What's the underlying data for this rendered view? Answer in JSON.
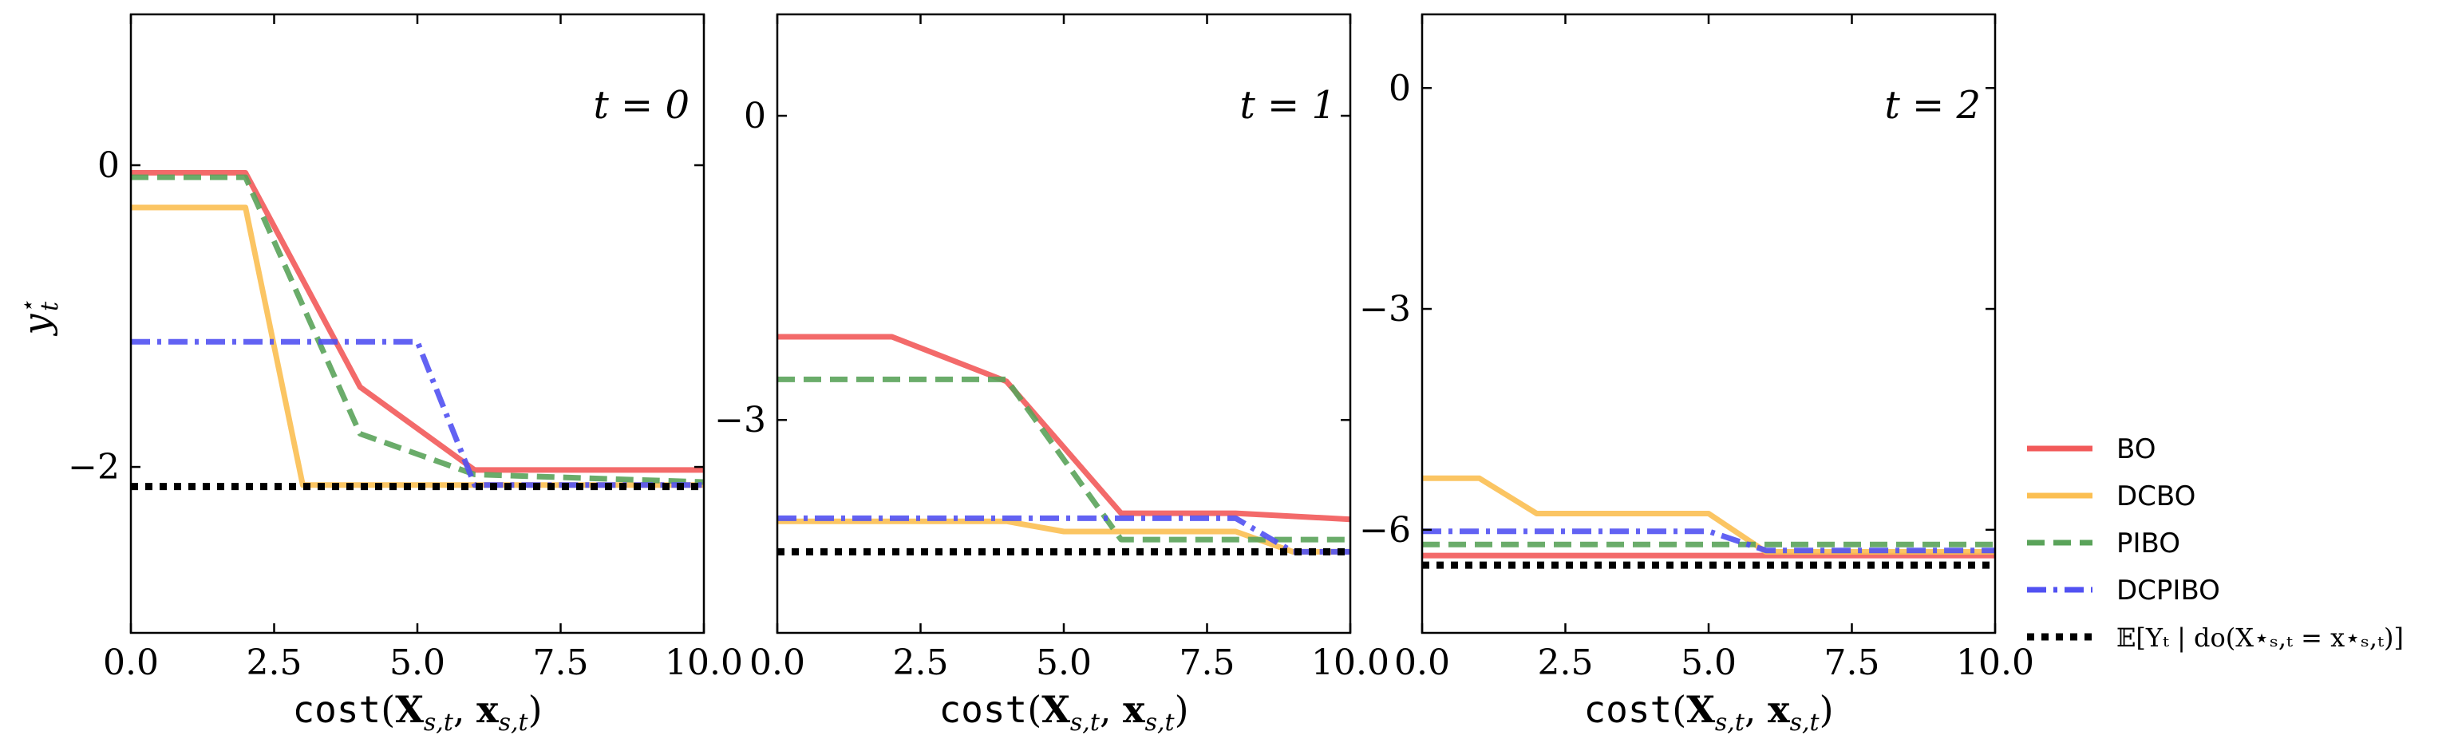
{
  "chart_data": [
    {
      "type": "line",
      "panel_label": "t = 0",
      "xlabel": "cost(X_{s,t}, x_{s,t})",
      "ylabel": "y*_t",
      "xlim": [
        0,
        10
      ],
      "ylim": [
        -3.1,
        1.0
      ],
      "xticks": [
        "0.0",
        "2.5",
        "5.0",
        "7.5",
        "10.0"
      ],
      "yticks": [
        {
          "value": 0,
          "label": "0"
        },
        {
          "value": -2,
          "label": "−2"
        }
      ],
      "series": [
        {
          "name": "BO",
          "x": [
            0,
            2,
            4,
            6,
            10
          ],
          "y": [
            -0.05,
            -0.05,
            -1.47,
            -2.02,
            -2.02
          ]
        },
        {
          "name": "DCBO",
          "x": [
            0,
            2,
            3,
            10
          ],
          "y": [
            -0.28,
            -0.28,
            -2.12,
            -2.12
          ]
        },
        {
          "name": "PIBO",
          "x": [
            0,
            2,
            4,
            6,
            10
          ],
          "y": [
            -0.08,
            -0.08,
            -1.78,
            -2.05,
            -2.1
          ]
        },
        {
          "name": "DCPIBO",
          "x": [
            0,
            5,
            6,
            10
          ],
          "y": [
            -1.17,
            -1.17,
            -2.12,
            -2.12
          ]
        },
        {
          "name": "E[Y_t | do(X*_{s,t} = x*_{s,t})]",
          "x": [
            0,
            10
          ],
          "y": [
            -2.13,
            -2.13
          ]
        }
      ]
    },
    {
      "type": "line",
      "panel_label": "t = 1",
      "xlabel": "cost(X_{s,t}, x_{s,t})",
      "ylabel": "",
      "xlim": [
        0,
        10
      ],
      "ylim": [
        -5.1,
        1.0
      ],
      "xticks": [
        "0.0",
        "2.5",
        "5.0",
        "7.5",
        "10.0"
      ],
      "yticks": [
        {
          "value": 0,
          "label": "0"
        },
        {
          "value": -3,
          "label": "−3"
        }
      ],
      "series": [
        {
          "name": "BO",
          "x": [
            0,
            2,
            4,
            6,
            8,
            10
          ],
          "y": [
            -2.18,
            -2.18,
            -2.62,
            -3.92,
            -3.92,
            -3.98
          ]
        },
        {
          "name": "DCBO",
          "x": [
            0,
            4,
            5,
            8,
            9,
            10
          ],
          "y": [
            -4.0,
            -4.0,
            -4.1,
            -4.1,
            -4.3,
            -4.3
          ]
        },
        {
          "name": "PIBO",
          "x": [
            0,
            4,
            6,
            10
          ],
          "y": [
            -2.6,
            -2.6,
            -4.18,
            -4.18
          ]
        },
        {
          "name": "DCPIBO",
          "x": [
            0,
            8,
            9,
            10
          ],
          "y": [
            -3.97,
            -3.97,
            -4.3,
            -4.3
          ]
        },
        {
          "name": "E[Y_t | do(X*_{s,t} = x*_{s,t})]",
          "x": [
            0,
            10
          ],
          "y": [
            -4.3,
            -4.3
          ]
        }
      ]
    },
    {
      "type": "line",
      "panel_label": "t = 2",
      "xlabel": "cost(X_{s,t}, x_{s,t})",
      "ylabel": "",
      "xlim": [
        0,
        10
      ],
      "ylim": [
        -7.4,
        1.0
      ],
      "xticks": [
        "0.0",
        "2.5",
        "5.0",
        "7.5",
        "10.0"
      ],
      "yticks": [
        {
          "value": 0,
          "label": "0"
        },
        {
          "value": -3,
          "label": "−3"
        },
        {
          "value": -6,
          "label": "−6"
        }
      ],
      "series": [
        {
          "name": "BO",
          "x": [
            0,
            10
          ],
          "y": [
            -6.35,
            -6.35
          ]
        },
        {
          "name": "DCBO",
          "x": [
            0,
            1,
            2,
            5,
            6,
            10
          ],
          "y": [
            -5.3,
            -5.3,
            -5.78,
            -5.78,
            -6.3,
            -6.3
          ]
        },
        {
          "name": "PIBO",
          "x": [
            0,
            10
          ],
          "y": [
            -6.2,
            -6.2
          ]
        },
        {
          "name": "DCPIBO",
          "x": [
            0,
            5,
            6,
            10
          ],
          "y": [
            -6.02,
            -6.02,
            -6.28,
            -6.28
          ]
        },
        {
          "name": "E[Y_t | do(X*_{s,t} = x*_{s,t})]",
          "x": [
            0,
            10
          ],
          "y": [
            -6.48,
            -6.48
          ]
        }
      ]
    }
  ],
  "legend": {
    "placement": "right",
    "items": [
      {
        "label": "BO",
        "color": "#f25a5a",
        "dash": "solid"
      },
      {
        "label": "DCBO",
        "color": "#fbbf52",
        "dash": "solid"
      },
      {
        "label": "PIBO",
        "color": "#5aa35a",
        "dash": "dashed"
      },
      {
        "label": "DCPIBO",
        "color": "#5151f2",
        "dash": "dashdot"
      },
      {
        "label": "𝔼[Yₜ | do(X⋆ₛ,ₜ = x⋆ₛ,ₜ)]",
        "color": "#000000",
        "dash": "dotted"
      }
    ]
  },
  "grid": false
}
